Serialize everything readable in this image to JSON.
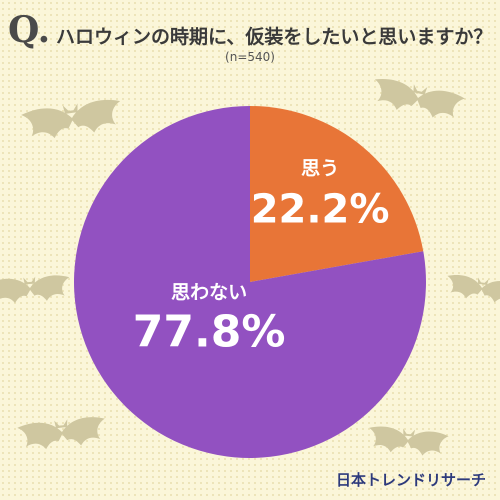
{
  "question": {
    "mark": "Q.",
    "title": "ハロウィンの時期に、仮装をしたいと思いますか？",
    "sample": "(n=540)"
  },
  "chart_data": {
    "type": "pie",
    "categories": [
      "思う",
      "思わない"
    ],
    "values": [
      22.2,
      77.8
    ],
    "value_labels": [
      "22.2%",
      "77.8%"
    ],
    "colors": [
      "#e87537",
      "#9251c1"
    ],
    "start": "12 o'clock, clockwise"
  },
  "decoration": {
    "icon": "bat-icon",
    "bat_color": "#cfc7a0"
  },
  "brand": "日本トレンドリサーチ"
}
